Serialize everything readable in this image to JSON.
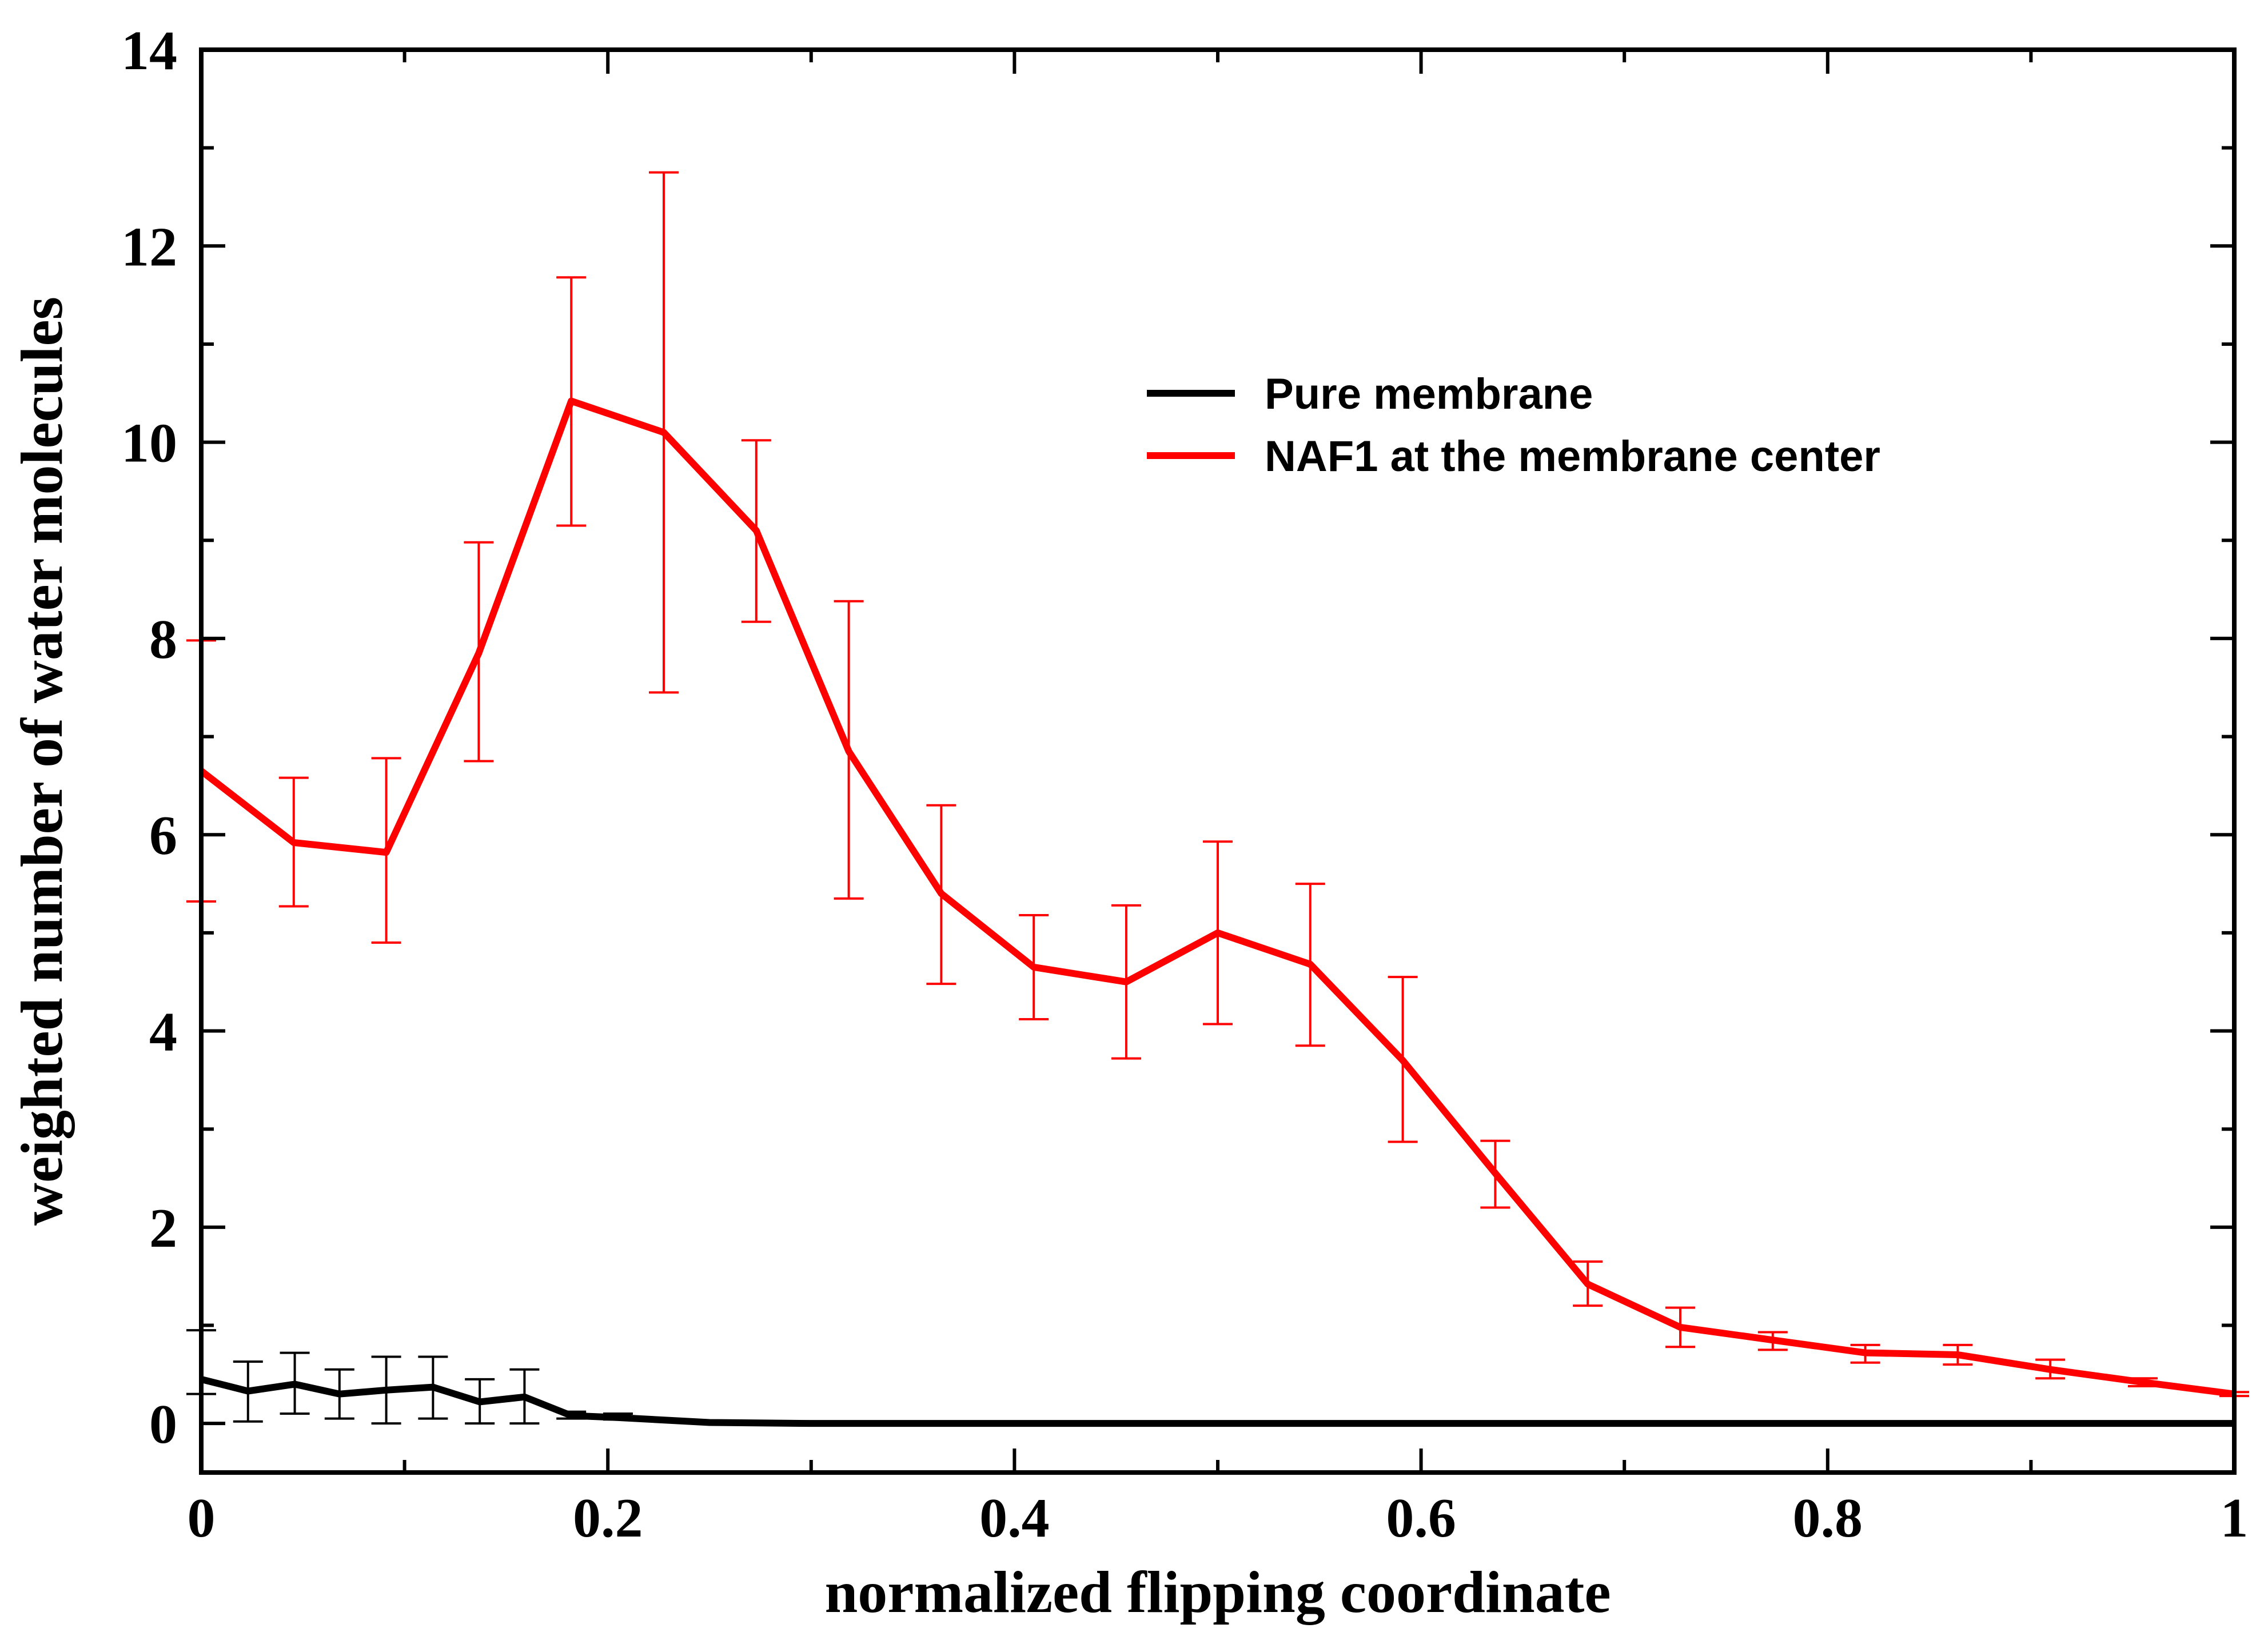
{
  "chart_data": {
    "type": "line",
    "title": "",
    "xlabel": "normalized flipping coordinate",
    "ylabel": "weighted number of water molecules",
    "xlim": [
      0,
      1
    ],
    "ylim": [
      -0.5,
      14
    ],
    "x_ticks": [
      0,
      0.2,
      0.4,
      0.6,
      0.8,
      1
    ],
    "x_tick_labels": [
      "0",
      "0.2",
      "0.4",
      "0.6",
      "0.8",
      "1"
    ],
    "y_ticks": [
      0,
      2,
      4,
      6,
      8,
      10,
      12,
      14
    ],
    "y_tick_labels": [
      "0",
      "2",
      "4",
      "6",
      "8",
      "10",
      "12",
      "14"
    ],
    "grid": false,
    "legend_position": "upper-right",
    "series": [
      {
        "name": "Pure membrane",
        "color": "#000000",
        "x": [
          0,
          0.023,
          0.046,
          0.068,
          0.091,
          0.114,
          0.137,
          0.159,
          0.182,
          0.205,
          0.25,
          0.3,
          0.4,
          0.5,
          0.6,
          0.7,
          0.8,
          0.9,
          1.0
        ],
        "y": [
          0.45,
          0.33,
          0.4,
          0.3,
          0.34,
          0.37,
          0.22,
          0.27,
          0.08,
          0.06,
          0.01,
          0.0,
          0.0,
          0.0,
          0.0,
          0.0,
          0.0,
          0.0,
          0.0
        ],
        "err_x": [
          0,
          0.023,
          0.046,
          0.068,
          0.091,
          0.114,
          0.137,
          0.159,
          0.182,
          0.205
        ],
        "err_low": [
          0.3,
          0.02,
          0.1,
          0.05,
          0.0,
          0.05,
          0.0,
          0.0,
          0.05,
          0.04
        ],
        "err_high": [
          0.95,
          0.63,
          0.72,
          0.55,
          0.68,
          0.68,
          0.45,
          0.55,
          0.12,
          0.1
        ]
      },
      {
        "name": "NAF1 at  the membrane center",
        "color": "#ff0000",
        "x": [
          0,
          0.0455,
          0.091,
          0.1365,
          0.182,
          0.2275,
          0.273,
          0.3185,
          0.364,
          0.4095,
          0.455,
          0.5,
          0.5455,
          0.591,
          0.6365,
          0.682,
          0.7275,
          0.773,
          0.8185,
          0.864,
          0.9095,
          0.955,
          1.0
        ],
        "y": [
          6.65,
          5.92,
          5.82,
          7.85,
          10.42,
          10.1,
          9.1,
          6.85,
          5.4,
          4.65,
          4.5,
          5.0,
          4.68,
          3.7,
          2.55,
          1.42,
          0.98,
          0.85,
          0.72,
          0.7,
          0.55,
          0.42,
          0.3
        ],
        "err_low": [
          5.32,
          5.27,
          4.9,
          6.75,
          9.15,
          7.45,
          8.17,
          5.35,
          4.48,
          4.12,
          3.72,
          4.07,
          3.85,
          2.87,
          2.2,
          1.2,
          0.78,
          0.75,
          0.62,
          0.6,
          0.46,
          0.38,
          0.28
        ],
        "err_high": [
          7.98,
          6.58,
          6.78,
          8.98,
          11.68,
          12.75,
          10.02,
          8.38,
          6.3,
          5.18,
          5.28,
          5.93,
          5.5,
          4.55,
          2.88,
          1.65,
          1.18,
          0.93,
          0.8,
          0.8,
          0.65,
          0.46,
          0.32
        ]
      }
    ]
  }
}
